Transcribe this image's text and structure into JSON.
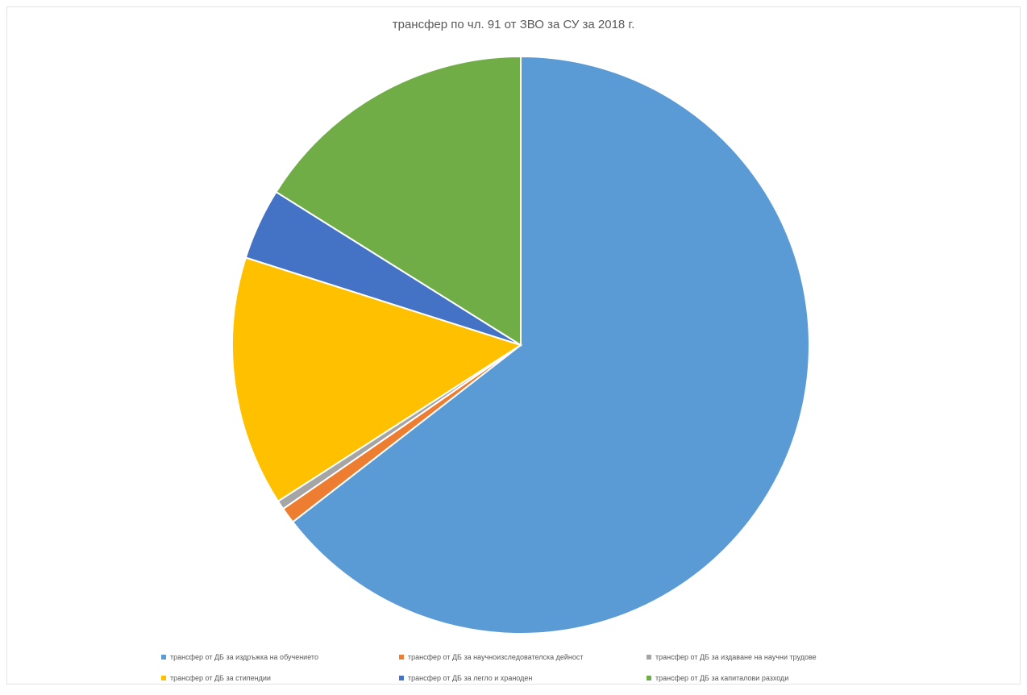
{
  "chart_data": {
    "type": "pie",
    "title": "трансфер по чл. 91 от ЗВО за СУ за 2018 г.",
    "legend_position": "bottom",
    "slices": [
      {
        "label": "трансфер от ДБ за издръжка на обучението",
        "value": 64.5,
        "color": "#5b9bd5"
      },
      {
        "label": "трансфер от ДБ за научноизследователска дейност",
        "value": 0.9,
        "color": "#ed7d31"
      },
      {
        "label": "трансфер от ДБ за издаване на научни трудове",
        "value": 0.5,
        "color": "#a5a5a5"
      },
      {
        "label": "трансфер от ДБ за стипендии",
        "value": 14.0,
        "color": "#ffc000"
      },
      {
        "label": "трансфер от ДБ за легло и храноден",
        "value": 4.0,
        "color": "#4472c4"
      },
      {
        "label": "трансфер от ДБ за капиталови разходи",
        "value": 16.1,
        "color": "#70ad47"
      }
    ]
  }
}
